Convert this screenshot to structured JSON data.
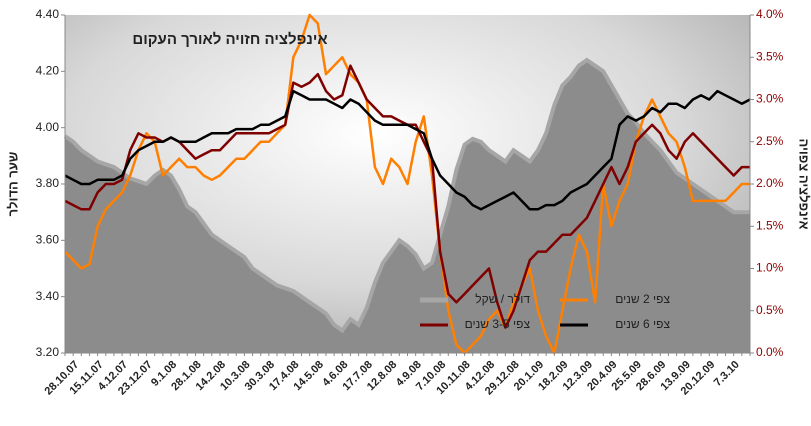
{
  "chart_data": {
    "type": "line",
    "title": "אינפלציה חזויה לאורך העקום",
    "y_label": "שער הדולר",
    "y2_label": "אינפלציה צפויה",
    "categories": [
      null,
      "28.10.07",
      null,
      null,
      "15.11.07",
      null,
      null,
      "4.12.07",
      null,
      null,
      "23.12.07",
      null,
      null,
      "9.1.08",
      null,
      null,
      "28.1.08",
      null,
      null,
      "14.2.08",
      null,
      null,
      "10.3.08",
      null,
      null,
      "30.3.08",
      null,
      null,
      "17.4.08",
      null,
      null,
      "14.5.08",
      null,
      null,
      "4.6.08",
      null,
      null,
      "17.7.08",
      null,
      null,
      "12.8.08",
      null,
      null,
      "4.9.08",
      null,
      null,
      "7.10.08",
      null,
      null,
      "10.11.08",
      null,
      null,
      "4.12.08",
      null,
      null,
      "29.12.08",
      null,
      null,
      "20.1.09",
      null,
      null,
      "18.2.09",
      null,
      null,
      "12.3.09",
      null,
      null,
      "20.4.09",
      null,
      null,
      "25.5.09",
      null,
      null,
      "28.6.09",
      null,
      null,
      "13.9.09",
      null,
      null,
      "20.12.09",
      null,
      null,
      "7.3.10",
      null,
      null
    ],
    "ylim": [
      3.2,
      4.4
    ],
    "yticks": [
      {
        "value": 3.2,
        "label": "3.20"
      },
      {
        "value": 3.4,
        "label": "3.40"
      },
      {
        "value": 3.6,
        "label": "3.60"
      },
      {
        "value": 3.8,
        "label": "3.80"
      },
      {
        "value": 4.0,
        "label": "4.00"
      },
      {
        "value": 4.2,
        "label": "4.20"
      },
      {
        "value": 4.4,
        "label": "4.40"
      }
    ],
    "y2lim": [
      0,
      4
    ],
    "y2ticks": [
      {
        "value": 0,
        "label": "0.0%"
      },
      {
        "value": 0.5,
        "label": "0.5%"
      },
      {
        "value": 1,
        "label": "1.0%"
      },
      {
        "value": 1.5,
        "label": "1.5%"
      },
      {
        "value": 2,
        "label": "2.0%"
      },
      {
        "value": 2.5,
        "label": "2.5%"
      },
      {
        "value": 3,
        "label": "3.0%"
      },
      {
        "value": 3.5,
        "label": "3.5%"
      },
      {
        "value": 4,
        "label": "4.0%"
      }
    ],
    "series": [
      {
        "name": "דולר / שקל",
        "type": "area",
        "color": "#8c8c8c",
        "values": [
          3.97,
          3.95,
          3.92,
          3.9,
          3.88,
          3.87,
          3.86,
          3.84,
          3.82,
          3.81,
          3.8,
          3.83,
          3.85,
          3.83,
          3.78,
          3.72,
          3.7,
          3.66,
          3.62,
          3.6,
          3.58,
          3.56,
          3.54,
          3.5,
          3.48,
          3.46,
          3.44,
          3.43,
          3.42,
          3.4,
          3.38,
          3.36,
          3.34,
          3.3,
          3.28,
          3.32,
          3.3,
          3.36,
          3.45,
          3.52,
          3.56,
          3.6,
          3.58,
          3.55,
          3.5,
          3.52,
          3.62,
          3.72,
          3.85,
          3.94,
          3.96,
          3.95,
          3.92,
          3.9,
          3.88,
          3.92,
          3.9,
          3.88,
          3.92,
          3.98,
          4.08,
          4.15,
          4.18,
          4.22,
          4.24,
          4.22,
          4.2,
          4.15,
          4.1,
          4.05,
          4.02,
          3.98,
          3.95,
          3.92,
          3.88,
          3.84,
          3.82,
          3.8,
          3.78,
          3.76,
          3.74,
          3.72,
          3.7,
          3.7,
          3.7
        ]
      },
      {
        "name": "צפי 2 שנים",
        "axis": "y2",
        "color": "#ff7f00",
        "values": [
          1.2,
          1.1,
          1.0,
          1.05,
          1.5,
          1.7,
          1.8,
          1.9,
          2.1,
          2.4,
          2.6,
          2.5,
          2.1,
          2.2,
          2.3,
          2.2,
          2.2,
          2.1,
          2.05,
          2.1,
          2.2,
          2.3,
          2.3,
          2.4,
          2.5,
          2.5,
          2.6,
          2.7,
          3.5,
          3.7,
          4.0,
          3.9,
          3.3,
          3.4,
          3.5,
          3.3,
          3.2,
          3.0,
          2.2,
          2.0,
          2.3,
          2.2,
          2.0,
          2.5,
          2.8,
          2.1,
          1.2,
          0.5,
          0.1,
          0.0,
          0.1,
          0.2,
          0.4,
          0.5,
          0.3,
          0.6,
          0.8,
          1.0,
          0.5,
          0.2,
          0.0,
          0.5,
          1.0,
          1.4,
          1.2,
          0.6,
          2.0,
          1.5,
          1.8,
          2.0,
          2.5,
          2.8,
          3.0,
          2.8,
          2.6,
          2.5,
          2.2,
          1.8,
          1.8,
          1.8,
          1.8,
          1.8,
          1.9,
          2.0,
          2.0
        ]
      },
      {
        "name": "צפי 3-5 שנים",
        "axis": "y2",
        "color": "#7f0000",
        "values": [
          1.8,
          1.75,
          1.7,
          1.7,
          1.9,
          2.0,
          2.0,
          2.05,
          2.4,
          2.6,
          2.55,
          2.55,
          2.5,
          2.55,
          2.5,
          2.4,
          2.3,
          2.35,
          2.4,
          2.4,
          2.5,
          2.6,
          2.6,
          2.6,
          2.6,
          2.6,
          2.65,
          2.7,
          3.2,
          3.15,
          3.2,
          3.3,
          3.1,
          3.0,
          3.05,
          3.4,
          3.2,
          3.0,
          2.9,
          2.8,
          2.8,
          2.75,
          2.7,
          2.7,
          2.5,
          2.3,
          1.2,
          0.7,
          0.6,
          0.7,
          0.8,
          0.9,
          1.0,
          0.6,
          0.3,
          0.5,
          0.8,
          1.1,
          1.2,
          1.2,
          1.3,
          1.4,
          1.4,
          1.5,
          1.6,
          1.8,
          2.0,
          2.2,
          2.0,
          2.2,
          2.5,
          2.6,
          2.7,
          2.6,
          2.4,
          2.3,
          2.5,
          2.6,
          2.5,
          2.4,
          2.3,
          2.2,
          2.1,
          2.2,
          2.2
        ]
      },
      {
        "name": "צפי 6 שנים",
        "axis": "y2",
        "color": "#000000",
        "values": [
          2.1,
          2.05,
          2.0,
          2.0,
          2.05,
          2.05,
          2.05,
          2.1,
          2.3,
          2.4,
          2.45,
          2.5,
          2.5,
          2.55,
          2.5,
          2.5,
          2.5,
          2.55,
          2.6,
          2.6,
          2.6,
          2.65,
          2.65,
          2.65,
          2.7,
          2.7,
          2.75,
          2.8,
          3.1,
          3.05,
          3.0,
          3.0,
          3.0,
          2.95,
          2.9,
          3.0,
          2.95,
          2.85,
          2.75,
          2.7,
          2.7,
          2.7,
          2.7,
          2.65,
          2.6,
          2.3,
          2.1,
          2.0,
          1.9,
          1.85,
          1.75,
          1.7,
          1.75,
          1.8,
          1.85,
          1.9,
          1.8,
          1.7,
          1.7,
          1.75,
          1.75,
          1.8,
          1.9,
          1.95,
          2.0,
          2.1,
          2.2,
          2.3,
          2.7,
          2.8,
          2.75,
          2.8,
          2.9,
          2.85,
          2.95,
          2.95,
          2.9,
          3.0,
          3.05,
          3.0,
          3.1,
          3.05,
          3.0,
          2.95,
          3.0
        ]
      }
    ]
  }
}
